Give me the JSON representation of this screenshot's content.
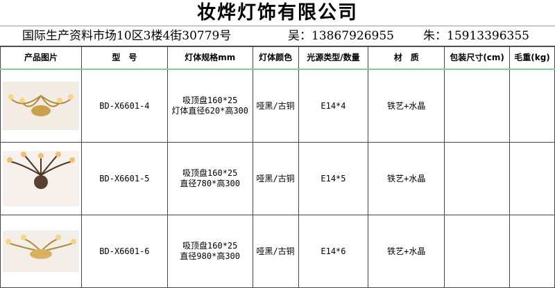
{
  "title": "妆烨灯饰有限公司",
  "address": "国际生产资料市场10区3楼4街30779号",
  "contact1": "吴：13867926955",
  "contact2": "朱：15913396355",
  "headers": [
    "产品图片",
    "型　号",
    "灯体规格mm",
    "灯体颜色",
    "光源类型/数量",
    "材　质",
    "包装尺寸(cm)",
    "毛重(kg)"
  ],
  "rows": [
    {
      "model": "BD-X6601-4",
      "spec1": "吸顶盘160*25",
      "spec2": "灯体直径620*高300",
      "color": "哑黑/古铜",
      "light": "E14*4",
      "material": "铁艺+水晶",
      "package": "",
      "weight": ""
    },
    {
      "model": "BD-X6601-5",
      "spec1": "吸顶盘160*25",
      "spec2": "直径780*高300",
      "color": "哑黑/古铜",
      "light": "E14*5",
      "material": "铁艺+水晶",
      "package": "",
      "weight": ""
    },
    {
      "model": "BD-X6601-6",
      "spec1": "吸顶盘160*25",
      "spec2": "直径980*高300",
      "color": "哑黑/古铜",
      "light": "E14*6",
      "material": "铁艺+水晶",
      "package": "",
      "weight": ""
    }
  ]
}
